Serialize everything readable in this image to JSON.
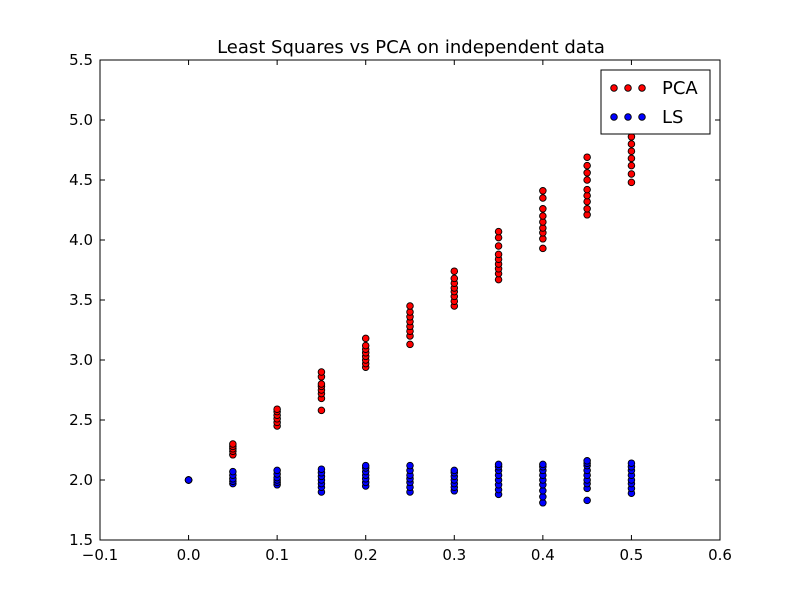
{
  "chart_data": {
    "type": "scatter",
    "title": "Least Squares vs PCA on independent data",
    "xlabel": "",
    "ylabel": "",
    "xlim": [
      -0.1,
      0.6
    ],
    "ylim": [
      1.5,
      5.5
    ],
    "xticks": [
      -0.1,
      0.0,
      0.1,
      0.2,
      0.3,
      0.4,
      0.5,
      0.6
    ],
    "xtick_labels": [
      "−0.1",
      "0.0",
      "0.1",
      "0.2",
      "0.3",
      "0.4",
      "0.5",
      "0.6"
    ],
    "yticks": [
      1.5,
      2.0,
      2.5,
      3.0,
      3.5,
      4.0,
      4.5,
      5.0,
      5.5
    ],
    "ytick_labels": [
      "1.5",
      "2.0",
      "2.5",
      "3.0",
      "3.5",
      "4.0",
      "4.5",
      "5.0",
      "5.5"
    ],
    "grid": false,
    "legend_position": "top-right",
    "series": [
      {
        "name": "PCA",
        "color": "#ff0000",
        "points": [
          [
            0.0,
            2.0
          ],
          [
            0.0,
            2.0
          ],
          [
            0.0,
            2.0
          ],
          [
            0.05,
            2.21
          ],
          [
            0.05,
            2.24
          ],
          [
            0.05,
            2.26
          ],
          [
            0.05,
            2.28
          ],
          [
            0.05,
            2.3
          ],
          [
            0.1,
            2.45
          ],
          [
            0.1,
            2.48
          ],
          [
            0.1,
            2.51
          ],
          [
            0.1,
            2.54
          ],
          [
            0.1,
            2.57
          ],
          [
            0.1,
            2.59
          ],
          [
            0.15,
            2.58
          ],
          [
            0.15,
            2.68
          ],
          [
            0.15,
            2.72
          ],
          [
            0.15,
            2.75
          ],
          [
            0.15,
            2.78
          ],
          [
            0.15,
            2.8
          ],
          [
            0.15,
            2.86
          ],
          [
            0.15,
            2.9
          ],
          [
            0.2,
            2.94
          ],
          [
            0.2,
            2.97
          ],
          [
            0.2,
            3.0
          ],
          [
            0.2,
            3.03
          ],
          [
            0.2,
            3.06
          ],
          [
            0.2,
            3.09
          ],
          [
            0.2,
            3.12
          ],
          [
            0.2,
            3.18
          ],
          [
            0.25,
            3.13
          ],
          [
            0.25,
            3.2
          ],
          [
            0.25,
            3.24
          ],
          [
            0.25,
            3.28
          ],
          [
            0.25,
            3.32
          ],
          [
            0.25,
            3.36
          ],
          [
            0.25,
            3.4
          ],
          [
            0.25,
            3.45
          ],
          [
            0.3,
            3.45
          ],
          [
            0.3,
            3.49
          ],
          [
            0.3,
            3.53
          ],
          [
            0.3,
            3.57
          ],
          [
            0.3,
            3.6
          ],
          [
            0.3,
            3.64
          ],
          [
            0.3,
            3.68
          ],
          [
            0.3,
            3.74
          ],
          [
            0.35,
            3.67
          ],
          [
            0.35,
            3.72
          ],
          [
            0.35,
            3.76
          ],
          [
            0.35,
            3.8
          ],
          [
            0.35,
            3.84
          ],
          [
            0.35,
            3.88
          ],
          [
            0.35,
            3.95
          ],
          [
            0.35,
            4.02
          ],
          [
            0.35,
            4.07
          ],
          [
            0.4,
            3.93
          ],
          [
            0.4,
            4.01
          ],
          [
            0.4,
            4.06
          ],
          [
            0.4,
            4.1
          ],
          [
            0.4,
            4.15
          ],
          [
            0.4,
            4.2
          ],
          [
            0.4,
            4.26
          ],
          [
            0.4,
            4.35
          ],
          [
            0.4,
            4.41
          ],
          [
            0.45,
            4.21
          ],
          [
            0.45,
            4.26
          ],
          [
            0.45,
            4.32
          ],
          [
            0.45,
            4.37
          ],
          [
            0.45,
            4.42
          ],
          [
            0.45,
            4.5
          ],
          [
            0.45,
            4.56
          ],
          [
            0.45,
            4.62
          ],
          [
            0.45,
            4.69
          ],
          [
            0.5,
            4.48
          ],
          [
            0.5,
            4.55
          ],
          [
            0.5,
            4.62
          ],
          [
            0.5,
            4.68
          ],
          [
            0.5,
            4.74
          ],
          [
            0.5,
            4.8
          ],
          [
            0.5,
            4.86
          ],
          [
            0.5,
            4.94
          ],
          [
            0.5,
            5.02
          ]
        ]
      },
      {
        "name": "LS",
        "color": "#0000ff",
        "points": [
          [
            0.0,
            2.0
          ],
          [
            0.0,
            2.0
          ],
          [
            0.0,
            2.0
          ],
          [
            0.05,
            1.97
          ],
          [
            0.05,
            1.99
          ],
          [
            0.05,
            2.01
          ],
          [
            0.05,
            2.04
          ],
          [
            0.05,
            2.07
          ],
          [
            0.1,
            1.96
          ],
          [
            0.1,
            1.98
          ],
          [
            0.1,
            2.0
          ],
          [
            0.1,
            2.02
          ],
          [
            0.1,
            2.05
          ],
          [
            0.1,
            2.08
          ],
          [
            0.15,
            1.9
          ],
          [
            0.15,
            1.94
          ],
          [
            0.15,
            1.97
          ],
          [
            0.15,
            2.0
          ],
          [
            0.15,
            2.03
          ],
          [
            0.15,
            2.06
          ],
          [
            0.15,
            2.09
          ],
          [
            0.2,
            1.95
          ],
          [
            0.2,
            1.98
          ],
          [
            0.2,
            2.01
          ],
          [
            0.2,
            2.04
          ],
          [
            0.2,
            2.07
          ],
          [
            0.2,
            2.1
          ],
          [
            0.2,
            2.12
          ],
          [
            0.25,
            1.9
          ],
          [
            0.25,
            1.94
          ],
          [
            0.25,
            1.98
          ],
          [
            0.25,
            2.01
          ],
          [
            0.25,
            2.04
          ],
          [
            0.25,
            2.08
          ],
          [
            0.25,
            2.12
          ],
          [
            0.3,
            1.91
          ],
          [
            0.3,
            1.94
          ],
          [
            0.3,
            1.97
          ],
          [
            0.3,
            2.0
          ],
          [
            0.3,
            2.03
          ],
          [
            0.3,
            2.06
          ],
          [
            0.3,
            2.08
          ],
          [
            0.35,
            1.88
          ],
          [
            0.35,
            1.92
          ],
          [
            0.35,
            1.96
          ],
          [
            0.35,
            2.0
          ],
          [
            0.35,
            2.04
          ],
          [
            0.35,
            2.08
          ],
          [
            0.35,
            2.11
          ],
          [
            0.35,
            2.13
          ],
          [
            0.4,
            1.81
          ],
          [
            0.4,
            1.86
          ],
          [
            0.4,
            1.91
          ],
          [
            0.4,
            1.96
          ],
          [
            0.4,
            2.0
          ],
          [
            0.4,
            2.04
          ],
          [
            0.4,
            2.08
          ],
          [
            0.4,
            2.11
          ],
          [
            0.4,
            2.13
          ],
          [
            0.45,
            1.83
          ],
          [
            0.45,
            1.93
          ],
          [
            0.45,
            1.97
          ],
          [
            0.45,
            2.0
          ],
          [
            0.45,
            2.04
          ],
          [
            0.45,
            2.08
          ],
          [
            0.45,
            2.12
          ],
          [
            0.45,
            2.14
          ],
          [
            0.45,
            2.16
          ],
          [
            0.5,
            1.89
          ],
          [
            0.5,
            1.93
          ],
          [
            0.5,
            1.97
          ],
          [
            0.5,
            2.0
          ],
          [
            0.5,
            2.04
          ],
          [
            0.5,
            2.08
          ],
          [
            0.5,
            2.11
          ],
          [
            0.5,
            2.14
          ]
        ]
      }
    ]
  }
}
